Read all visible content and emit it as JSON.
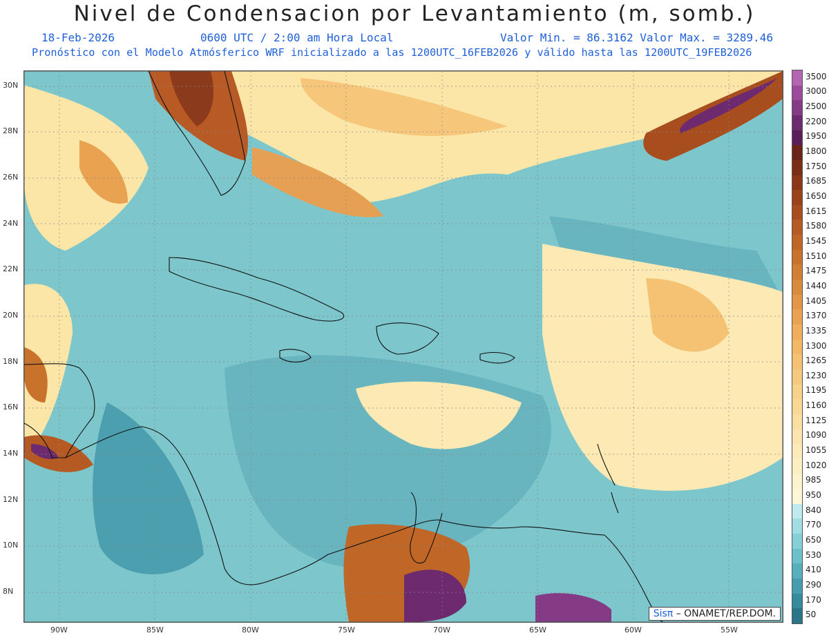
{
  "header": {
    "title": "Nivel de Condensacion por Levantamiento (m, somb.)",
    "date": "18-Feb-2026",
    "time": "0600 UTC / 2:00 am Hora Local",
    "min_max": "Valor Min. = 86.3162  Valor Max. = 3289.46",
    "forecast_line": "Pronóstico con el Modelo Atmósferico WRF inicializado a las 1200UTC_16FEB2026 y válido hasta las  1200UTC_19FEB2026"
  },
  "axes": {
    "lat_labels": [
      "30N",
      "28N",
      "26N",
      "24N",
      "22N",
      "20N",
      "18N",
      "16N",
      "14N",
      "12N",
      "10N",
      "8N"
    ],
    "lon_labels": [
      "90W",
      "85W",
      "80W",
      "75W",
      "70W",
      "65W",
      "60W",
      "55W"
    ]
  },
  "colorbar": {
    "levels": [
      "3500",
      "3000",
      "2500",
      "2200",
      "1950",
      "1800",
      "1750",
      "1685",
      "1650",
      "1615",
      "1580",
      "1545",
      "1510",
      "1475",
      "1440",
      "1405",
      "1370",
      "1335",
      "1300",
      "1265",
      "1230",
      "1195",
      "1160",
      "1125",
      "1090",
      "1055",
      "1020",
      "985",
      "950",
      "840",
      "770",
      "650",
      "530",
      "410",
      "290",
      "170",
      "50"
    ],
    "colors": [
      "#b364b3",
      "#9c4a9c",
      "#853a85",
      "#6e2a6e",
      "#5a1e5a",
      "#6a2418",
      "#7a2e16",
      "#8a3818",
      "#9a431b",
      "#a84e1e",
      "#b55a22",
      "#c06626",
      "#c9722c",
      "#d27e34",
      "#da8a3c",
      "#e29646",
      "#e8a250",
      "#eeae5a",
      "#f2b866",
      "#f4c272",
      "#f6ca7e",
      "#f8d28a",
      "#f9d896",
      "#fadea2",
      "#fbe4ae",
      "#fceab8",
      "#fcefc2",
      "#fdf3cc",
      "#fef7d6",
      "#bfeaee",
      "#a2dde3",
      "#86cfd7",
      "#6cc0ca",
      "#56afbc",
      "#449ead",
      "#358b9c",
      "#2a7688"
    ]
  },
  "credit": {
    "brand": "Sisπ",
    "text": " – ONAMET/REP.DOM."
  }
}
